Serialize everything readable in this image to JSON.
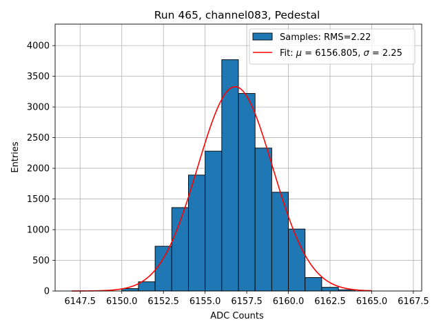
{
  "chart_data": {
    "type": "bar",
    "title": "Run 465, channel083, Pedestal",
    "xlabel": "ADC Counts",
    "ylabel": "Entries",
    "xlim": [
      6146.0,
      6168.0
    ],
    "ylim": [
      0,
      4350
    ],
    "x_ticks": [
      6147.5,
      6150.0,
      6152.5,
      6155.0,
      6157.5,
      6160.0,
      6162.5,
      6165.0,
      6167.5
    ],
    "x_tick_labels": [
      "6147.5",
      "6150.0",
      "6152.5",
      "6155.0",
      "6157.5",
      "6160.0",
      "6162.5",
      "6165.0",
      "6167.5"
    ],
    "y_ticks": [
      0,
      500,
      1000,
      1500,
      2000,
      2500,
      3000,
      3500,
      4000
    ],
    "y_tick_labels": [
      "0",
      "500",
      "1000",
      "1500",
      "2000",
      "2500",
      "3000",
      "3500",
      "4000"
    ],
    "grid": true,
    "legend_position": "top-right",
    "histogram": {
      "name": "Samples: RMS=2.22",
      "color": "#1f77b4",
      "bin_width": 1,
      "bin_starts": [
        6150,
        6151,
        6152,
        6153,
        6154,
        6155,
        6156,
        6157,
        6158,
        6159,
        6160,
        6161,
        6162,
        6163
      ],
      "counts": [
        40,
        150,
        730,
        1360,
        1890,
        2280,
        3770,
        3220,
        2330,
        1610,
        1010,
        220,
        60,
        20
      ]
    },
    "fit": {
      "name": "Fit: μ = 6156.805, σ = 2.25",
      "legend_prefix": "Fit: ",
      "mu_symbol": "μ",
      "mu_text": " = 6156.805, ",
      "sigma_symbol": "σ",
      "sigma_text": " = 2.25",
      "color": "#ff0000",
      "mu": 6156.805,
      "sigma": 2.25,
      "amplitude": 3330,
      "x_range": [
        6147.0,
        6165.0
      ]
    }
  }
}
